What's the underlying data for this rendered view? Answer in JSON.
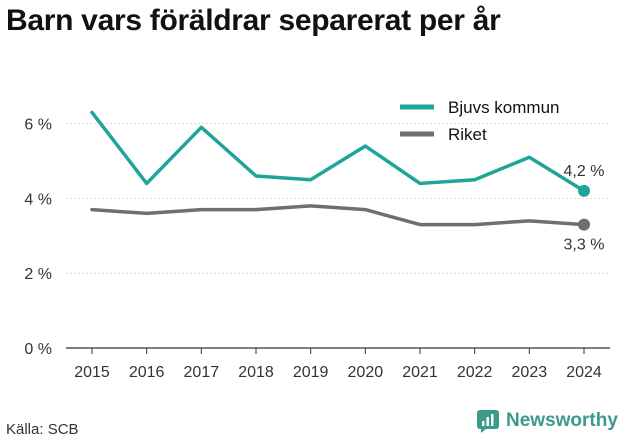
{
  "title": "Barn vars föräldrar separerat per år",
  "source": "Källa: SCB",
  "brand": {
    "name": "Newsworthy",
    "icon": "newsworthy-logo-icon",
    "color": "#3a9a8c"
  },
  "chart_data": {
    "type": "line",
    "title": "Barn vars föräldrar separerat per år",
    "xlabel": "",
    "ylabel": "",
    "x": [
      2015,
      2016,
      2017,
      2018,
      2019,
      2020,
      2021,
      2022,
      2023,
      2024
    ],
    "ylim": [
      0,
      7
    ],
    "yticks": [
      0,
      2,
      4,
      6
    ],
    "ytick_labels": [
      "0 %",
      "2 %",
      "4 %",
      "6 %"
    ],
    "grid": true,
    "legend": "top-right",
    "series": [
      {
        "name": "Bjuvs kommun",
        "color": "#1fa598",
        "values": [
          6.3,
          4.4,
          5.9,
          4.6,
          4.5,
          5.4,
          4.4,
          4.5,
          5.1,
          4.2
        ],
        "end_label": "4,2 %"
      },
      {
        "name": "Riket",
        "color": "#6e6e73",
        "values": [
          3.7,
          3.6,
          3.7,
          3.7,
          3.8,
          3.7,
          3.3,
          3.3,
          3.4,
          3.3
        ],
        "end_label": "3,3 %"
      }
    ]
  }
}
